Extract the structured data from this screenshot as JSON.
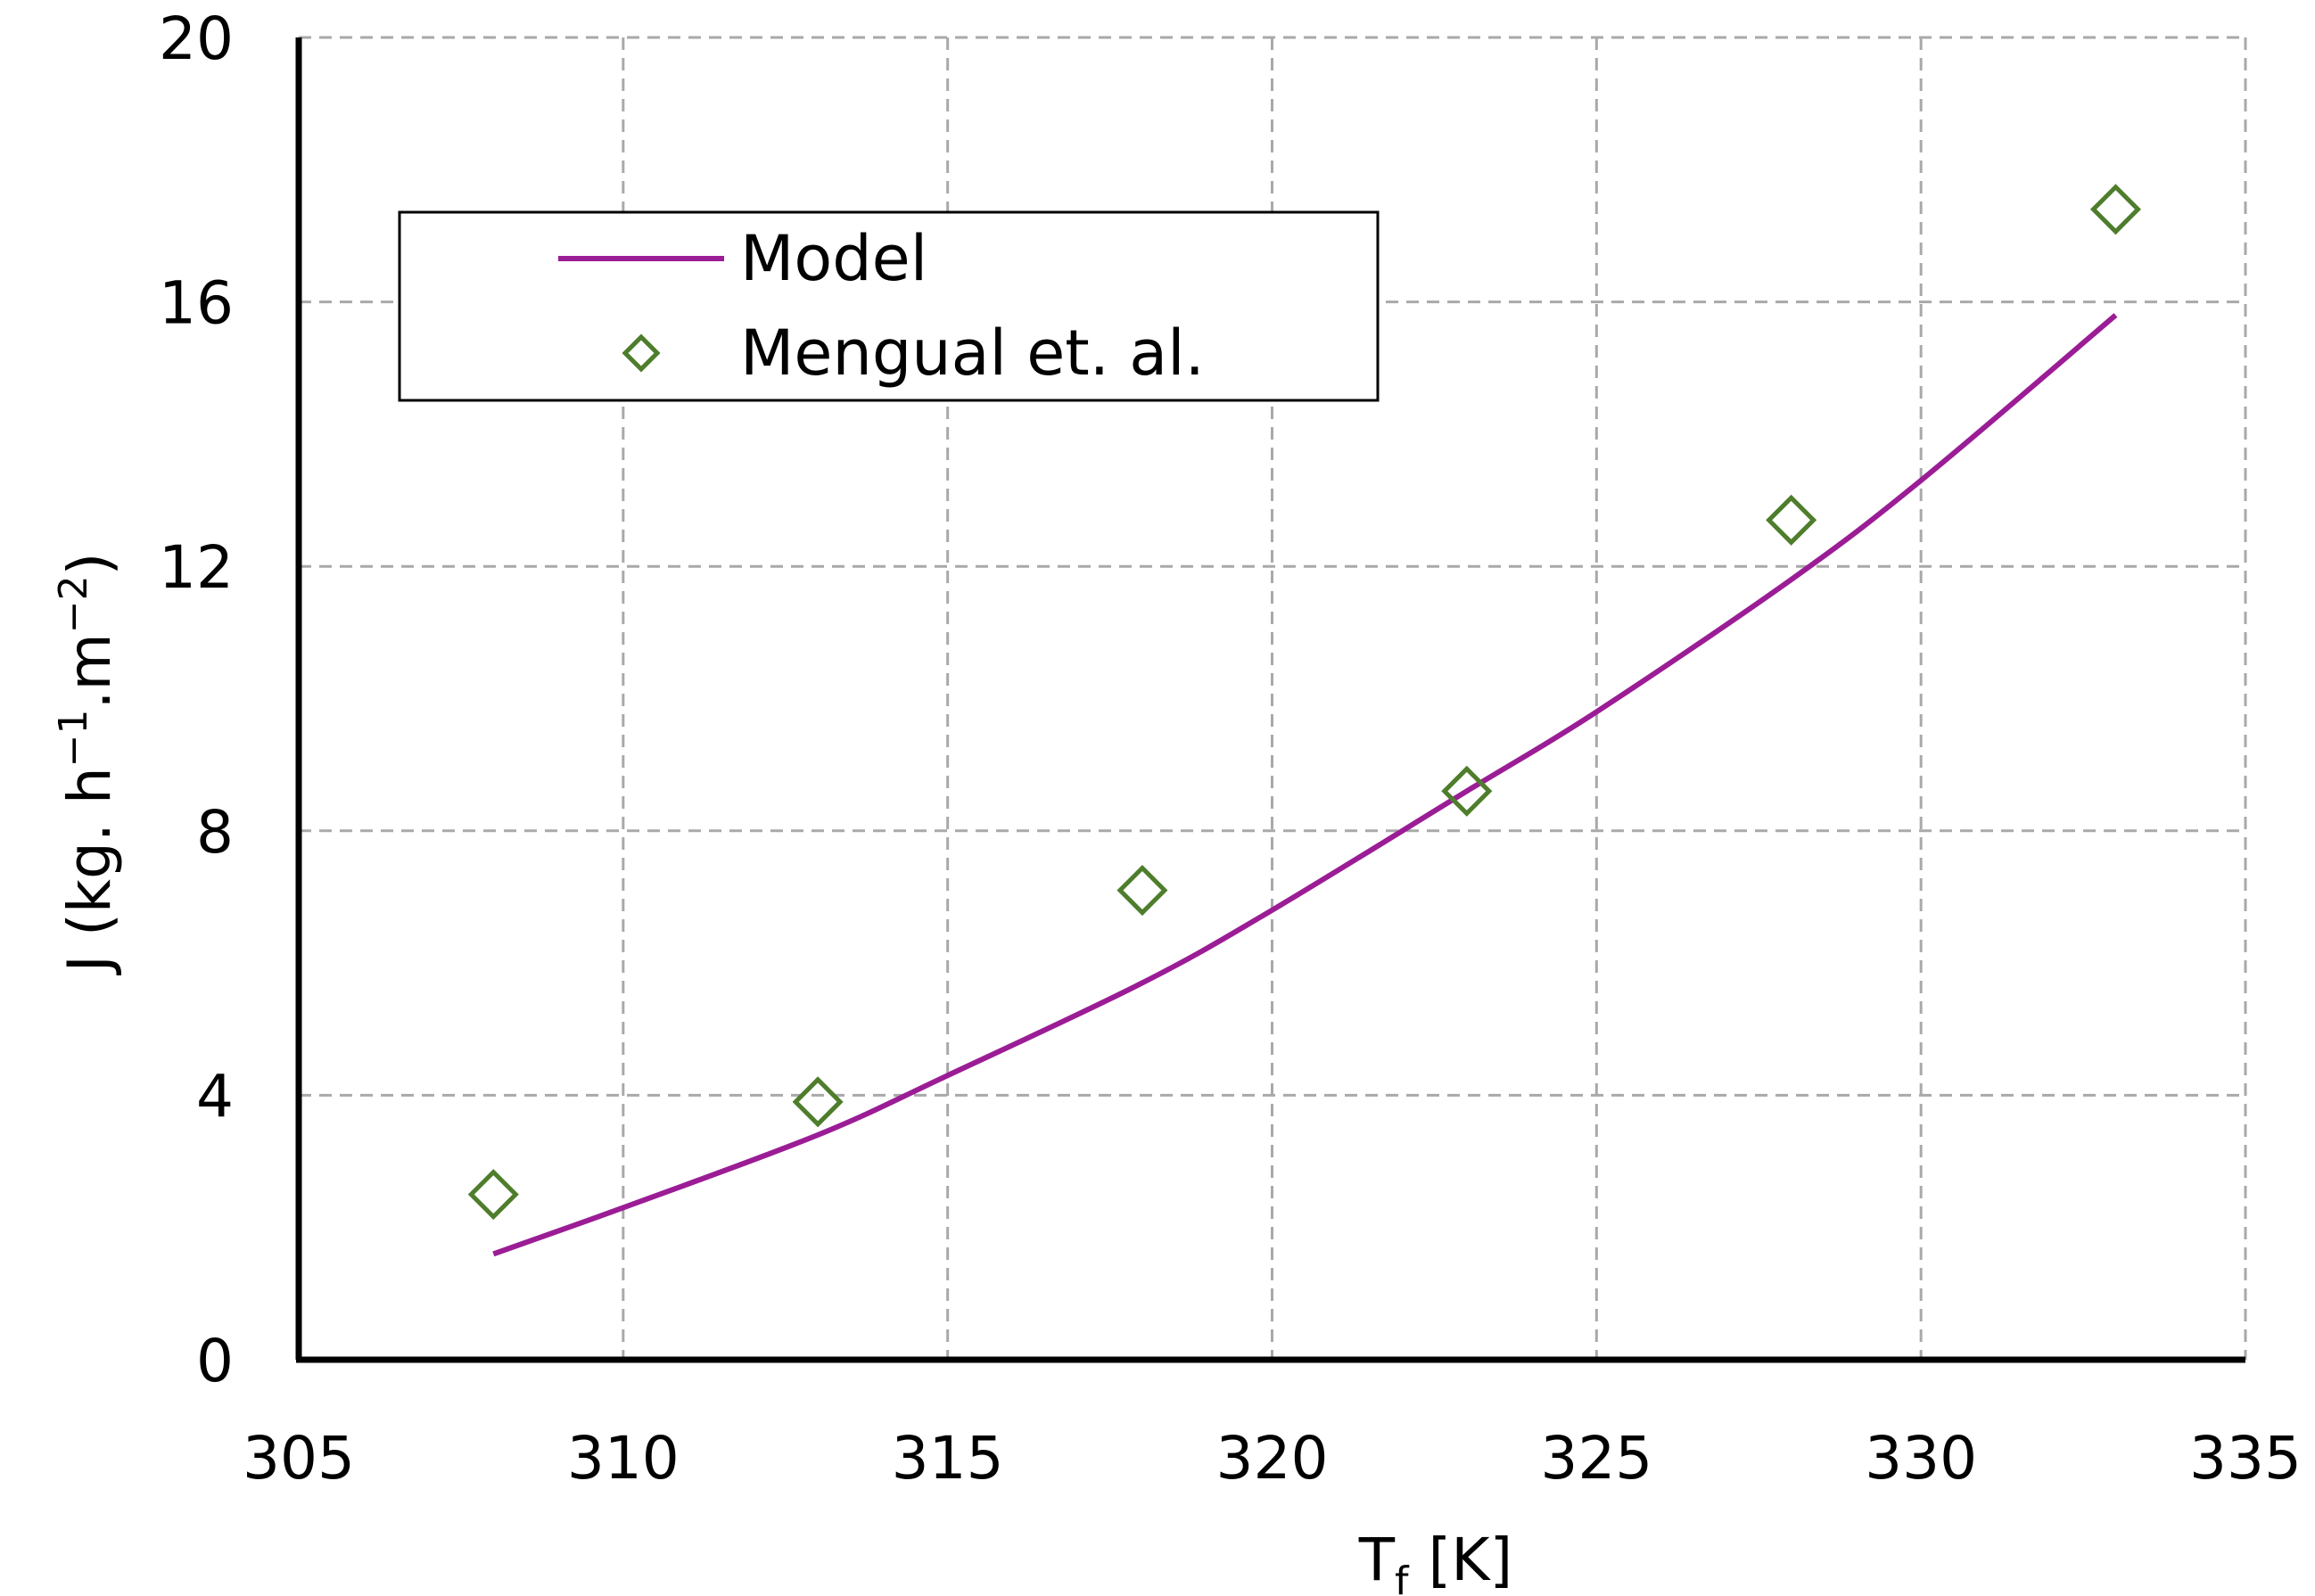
{
  "chart_data": {
    "type": "scatter",
    "xlabel": "T",
    "xlabel_sub": "f",
    "xlabel_suffix": "[K]",
    "ylabel_prefix": "J (kg. h",
    "ylabel_sup1": "−1",
    "ylabel_mid": ".m",
    "ylabel_sup2": "−2",
    "ylabel_suffix": ")",
    "xlim": [
      305,
      335
    ],
    "ylim": [
      0,
      20
    ],
    "xticks": [
      305,
      310,
      315,
      320,
      325,
      330,
      335
    ],
    "yticks": [
      0,
      4,
      8,
      12,
      16,
      20
    ],
    "grid": true,
    "legend_position": "top-left",
    "series": [
      {
        "name": "Model",
        "kind": "line",
        "color": "#9b1d96",
        "x": [
          308,
          310,
          313,
          315,
          318,
          320,
          323,
          325,
          328,
          330,
          333
        ],
        "y": [
          1.6,
          2.3,
          3.4,
          4.3,
          5.7,
          6.8,
          8.6,
          9.8,
          11.8,
          13.3,
          15.8
        ]
      },
      {
        "name": "Mengual et. al.",
        "kind": "scatter",
        "marker": "diamond-open",
        "color": "#4e7d2c",
        "x": [
          308,
          313,
          318,
          323,
          328,
          333
        ],
        "y": [
          2.5,
          3.9,
          7.1,
          8.6,
          12.7,
          17.4
        ]
      }
    ]
  }
}
